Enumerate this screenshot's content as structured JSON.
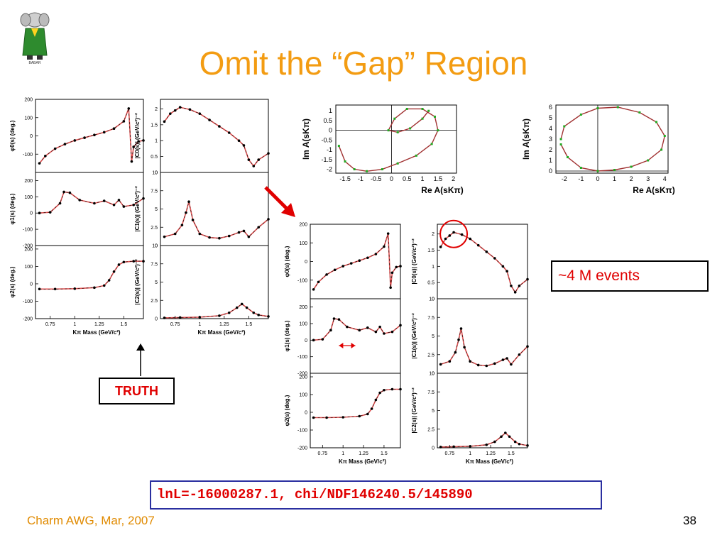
{
  "slide": {
    "title": "Omit the “Gap” Region",
    "footer_left": "Charm AWG, Mar, 2007",
    "page_number": "38",
    "truth_label": "TRUTH",
    "events_label": "~4 M events",
    "fit_result": "lnL=-16000287.1, chi/NDF146240.5/145890",
    "logo_caption": "BABAR",
    "colors": {
      "title": "#f39c12",
      "callout_text": "#e00000",
      "result_border": "#2a2fa0",
      "fit_curve": "#e05050",
      "truth_curve": "#e05050",
      "argand_points": "#22aa22"
    }
  },
  "chart_data": [
    {
      "id": "truth-grid",
      "type": "line",
      "xlabel": "Kπ Mass (GeV/c²)",
      "xticks": [
        "0.75",
        "1",
        "1.25",
        "1.5"
      ],
      "xlim": [
        0.6,
        1.7
      ],
      "panels": [
        {
          "ylabel": "φ0(s) (deg.)",
          "yticks": [
            "200",
            "100",
            "0",
            "-100"
          ],
          "ylim": [
            -200,
            200
          ],
          "x": [
            0.64,
            0.7,
            0.8,
            0.9,
            1.0,
            1.1,
            1.2,
            1.3,
            1.4,
            1.5,
            1.55,
            1.58,
            1.6,
            1.65,
            1.7
          ],
          "y": [
            -150,
            -110,
            -70,
            -45,
            -25,
            -10,
            5,
            20,
            40,
            80,
            150,
            -140,
            -60,
            -30,
            -25
          ]
        },
        {
          "ylabel": "|C0(s)| (GeV/c²)⁻²",
          "yticks": [
            "2",
            "1.5",
            "1",
            "0.5",
            "0"
          ],
          "ylim": [
            0,
            2.3
          ],
          "x": [
            0.64,
            0.7,
            0.75,
            0.8,
            0.9,
            1.0,
            1.1,
            1.2,
            1.3,
            1.4,
            1.45,
            1.5,
            1.55,
            1.6,
            1.7
          ],
          "y": [
            1.6,
            1.85,
            1.95,
            2.05,
            1.98,
            1.85,
            1.65,
            1.45,
            1.25,
            1.0,
            0.85,
            0.4,
            0.2,
            0.4,
            0.6
          ]
        },
        {
          "ylabel": "φ1(s) (deg.)",
          "yticks": [
            "200",
            "100",
            "0",
            "-100",
            "-200"
          ],
          "ylim": [
            -200,
            250
          ],
          "x": [
            0.64,
            0.75,
            0.85,
            0.89,
            0.95,
            1.05,
            1.2,
            1.3,
            1.4,
            1.45,
            1.5,
            1.6,
            1.7
          ],
          "y": [
            0,
            5,
            60,
            130,
            125,
            80,
            60,
            75,
            50,
            80,
            40,
            50,
            90
          ]
        },
        {
          "ylabel": "|C1(s)| (GeV/c²)⁻²",
          "yticks": [
            "10",
            "7.5",
            "5",
            "2.5",
            "0"
          ],
          "ylim": [
            0,
            10
          ],
          "x": [
            0.64,
            0.75,
            0.82,
            0.86,
            0.89,
            0.93,
            1.0,
            1.1,
            1.2,
            1.3,
            1.4,
            1.45,
            1.5,
            1.6,
            1.7
          ],
          "y": [
            1.2,
            1.6,
            2.8,
            4.5,
            6.0,
            3.5,
            1.6,
            1.1,
            1.0,
            1.3,
            1.8,
            2.0,
            1.2,
            2.5,
            3.6
          ]
        },
        {
          "ylabel": "φ2(s) (deg.)",
          "yticks": [
            "200",
            "100",
            "0",
            "-100",
            "-200"
          ],
          "ylim": [
            -200,
            220
          ],
          "x": [
            0.64,
            0.8,
            1.0,
            1.2,
            1.3,
            1.35,
            1.4,
            1.45,
            1.5,
            1.6,
            1.7
          ],
          "y": [
            -30,
            -30,
            -28,
            -22,
            -10,
            20,
            70,
            110,
            125,
            130,
            130
          ]
        },
        {
          "ylabel": "|C2(s)| (GeV/c²)⁻²",
          "yticks": [
            "10",
            "7.5",
            "5",
            "2.5",
            "0"
          ],
          "ylim": [
            0,
            10
          ],
          "x": [
            0.64,
            0.8,
            1.0,
            1.2,
            1.3,
            1.38,
            1.43,
            1.48,
            1.55,
            1.6,
            1.7
          ],
          "y": [
            0.1,
            0.15,
            0.2,
            0.4,
            0.8,
            1.5,
            2.0,
            1.5,
            0.8,
            0.5,
            0.3
          ]
        }
      ]
    },
    {
      "id": "fit-grid",
      "type": "line",
      "xlabel": "Kπ Mass (GeV/c²)",
      "xticks": [
        "0.75",
        "1",
        "1.25",
        "1.5"
      ],
      "xlim": [
        0.6,
        1.7
      ],
      "panels": [
        {
          "ylabel": "φ0(s) (deg.)",
          "yticks": [
            "200",
            "100",
            "0",
            "-100"
          ],
          "ylim": [
            -200,
            200
          ],
          "x": [
            0.64,
            0.7,
            0.8,
            0.9,
            1.0,
            1.1,
            1.2,
            1.3,
            1.4,
            1.5,
            1.55,
            1.58,
            1.6,
            1.65,
            1.7
          ],
          "y": [
            -150,
            -110,
            -70,
            -45,
            -25,
            -10,
            5,
            20,
            40,
            80,
            150,
            -140,
            -60,
            -30,
            -25
          ]
        },
        {
          "ylabel": "|C0(s)| (GeV/c²)⁻²",
          "yticks": [
            "2",
            "1.5",
            "1",
            "0.5",
            "0"
          ],
          "ylim": [
            0,
            2.3
          ],
          "x": [
            0.64,
            0.7,
            0.75,
            0.8,
            0.9,
            1.0,
            1.1,
            1.2,
            1.3,
            1.4,
            1.45,
            1.5,
            1.55,
            1.6,
            1.7
          ],
          "y": [
            1.6,
            1.85,
            1.95,
            2.05,
            1.98,
            1.85,
            1.65,
            1.45,
            1.25,
            1.0,
            0.85,
            0.4,
            0.2,
            0.4,
            0.6
          ]
        },
        {
          "ylabel": "φ1(s) (deg.)",
          "yticks": [
            "200",
            "100",
            "0",
            "-100",
            "-200"
          ],
          "ylim": [
            -200,
            250
          ],
          "x": [
            0.64,
            0.75,
            0.85,
            0.89,
            0.95,
            1.05,
            1.2,
            1.3,
            1.4,
            1.45,
            1.5,
            1.6,
            1.7
          ],
          "y": [
            0,
            5,
            60,
            130,
            125,
            80,
            60,
            75,
            50,
            80,
            40,
            50,
            90
          ]
        },
        {
          "ylabel": "|C1(s)| (GeV/c²)⁻²",
          "yticks": [
            "10",
            "7.5",
            "5",
            "2.5",
            "0"
          ],
          "ylim": [
            0,
            10
          ],
          "x": [
            0.64,
            0.75,
            0.82,
            0.86,
            0.89,
            0.93,
            1.0,
            1.1,
            1.2,
            1.3,
            1.4,
            1.45,
            1.5,
            1.6,
            1.7
          ],
          "y": [
            1.2,
            1.6,
            2.8,
            4.5,
            6.0,
            3.5,
            1.6,
            1.1,
            1.0,
            1.3,
            1.8,
            2.0,
            1.2,
            2.5,
            3.6
          ]
        },
        {
          "ylabel": "φ2(s) (deg.)",
          "yticks": [
            "200",
            "100",
            "0",
            "-100",
            "-200"
          ],
          "ylim": [
            -200,
            220
          ],
          "x": [
            0.64,
            0.8,
            1.0,
            1.2,
            1.3,
            1.35,
            1.4,
            1.45,
            1.5,
            1.6,
            1.7
          ],
          "y": [
            -30,
            -30,
            -28,
            -22,
            -10,
            20,
            70,
            110,
            125,
            130,
            130
          ]
        },
        {
          "ylabel": "|C2(s)| (GeV/c²)⁻²",
          "yticks": [
            "10",
            "7.5",
            "5",
            "2.5",
            "0"
          ],
          "ylim": [
            0,
            10
          ],
          "x": [
            0.64,
            0.8,
            1.0,
            1.2,
            1.3,
            1.38,
            1.43,
            1.48,
            1.55,
            1.6,
            1.7
          ],
          "y": [
            0.1,
            0.15,
            0.2,
            0.4,
            0.8,
            1.5,
            2.0,
            1.5,
            0.8,
            0.5,
            0.3
          ]
        }
      ]
    },
    {
      "id": "argand-1",
      "type": "scatter",
      "xlabel": "Re A(sKπ)",
      "ylabel": "Im A(sKπ)",
      "xticks": [
        "-1.5",
        "-1",
        "-0.5",
        "0",
        "0.5",
        "1",
        "1.5",
        "2"
      ],
      "yticks": [
        "1",
        "0.5",
        "0",
        "-0.5",
        "-1",
        "-1.5",
        "-2"
      ],
      "xlim": [
        -1.8,
        2.1
      ],
      "ylim": [
        -2.2,
        1.3
      ],
      "x": [
        -1.7,
        -1.5,
        -1.2,
        -0.8,
        -0.3,
        0.2,
        0.8,
        1.3,
        1.5,
        1.4,
        1.0,
        0.5,
        0.1,
        -0.1,
        0.2,
        0.6,
        1.0,
        1.2
      ],
      "y": [
        -0.8,
        -1.6,
        -2.0,
        -2.1,
        -2.0,
        -1.7,
        -1.3,
        -0.7,
        0.0,
        0.7,
        1.1,
        1.1,
        0.6,
        0.0,
        -0.1,
        0.1,
        0.6,
        1.0
      ]
    },
    {
      "id": "argand-2",
      "type": "scatter",
      "xlabel": "Re A(sKπ)",
      "ylabel": "Im A(sKπ)",
      "xticks": [
        "-2",
        "-1",
        "0",
        "1",
        "2",
        "3",
        "4"
      ],
      "yticks": [
        "6",
        "5",
        "4",
        "3",
        "2",
        "1",
        "0"
      ],
      "xlim": [
        -2.5,
        4.2
      ],
      "ylim": [
        -0.2,
        6.2
      ],
      "x": [
        -2.2,
        -1.8,
        -1.0,
        0.0,
        1.0,
        2.0,
        3.0,
        3.8,
        4.0,
        3.5,
        2.5,
        1.2,
        0.0,
        -1.0,
        -2.0,
        -2.2
      ],
      "y": [
        2.5,
        1.3,
        0.3,
        0.0,
        0.1,
        0.4,
        1.0,
        2.0,
        3.3,
        4.6,
        5.5,
        6.0,
        5.9,
        5.3,
        4.2,
        3.0
      ]
    }
  ]
}
